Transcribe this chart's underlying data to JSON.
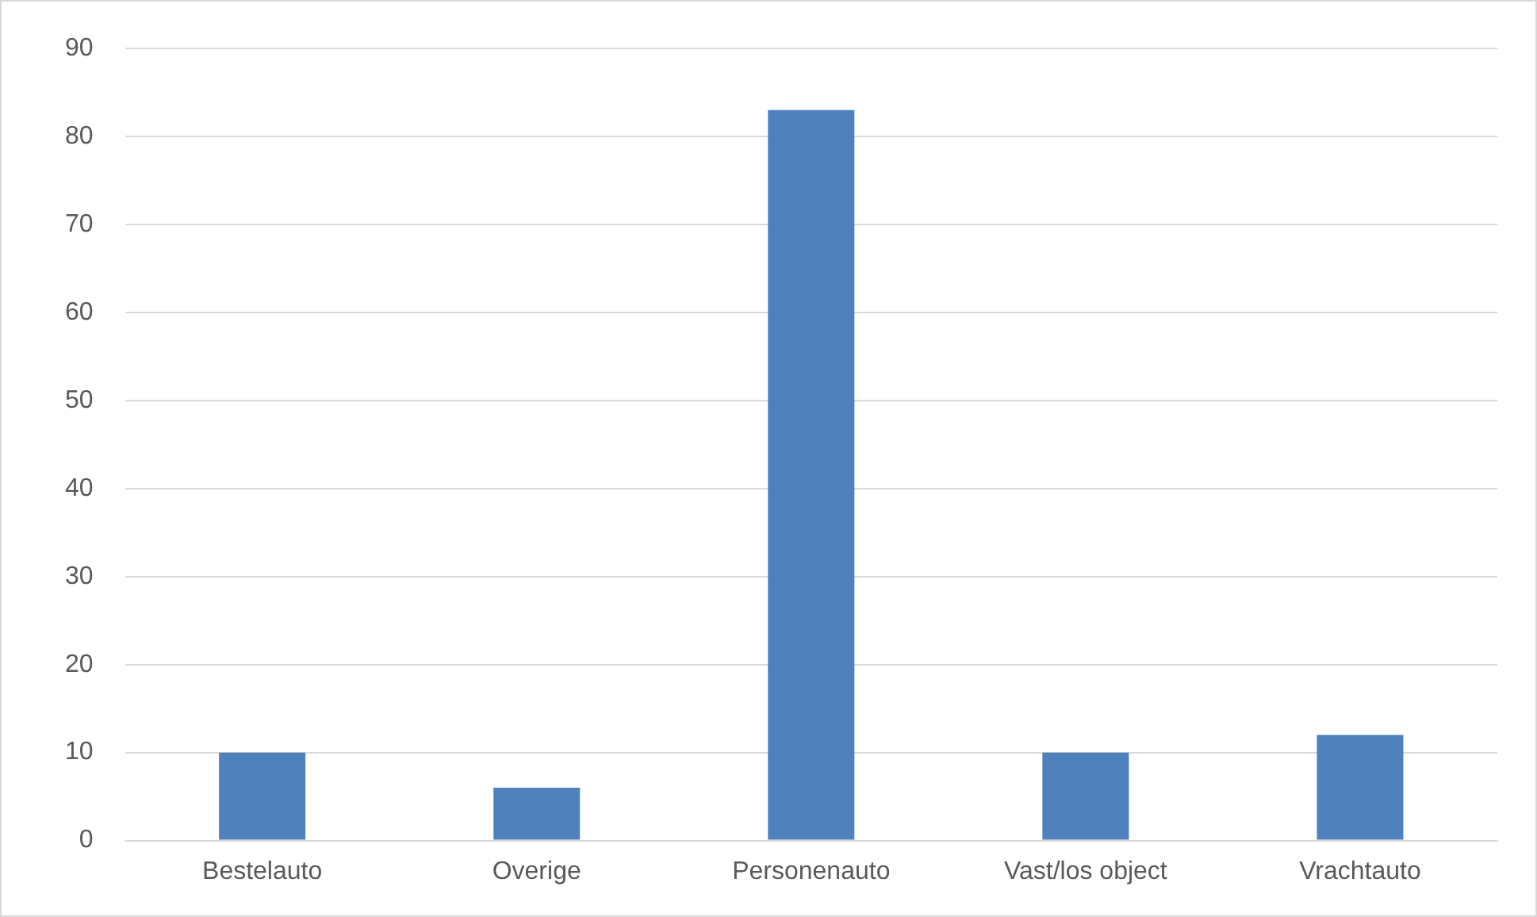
{
  "chart_data": {
    "type": "bar",
    "categories": [
      "Bestelauto",
      "Overige",
      "Personenauto",
      "Vast/los object",
      "Vrachtauto"
    ],
    "values": [
      10,
      6,
      83,
      10,
      12
    ],
    "color": "#4f81bd",
    "ylim": [
      0,
      90
    ],
    "yticks": [
      0,
      10,
      20,
      30,
      40,
      50,
      60,
      70,
      80,
      90
    ],
    "grid": "y",
    "legend": false
  }
}
